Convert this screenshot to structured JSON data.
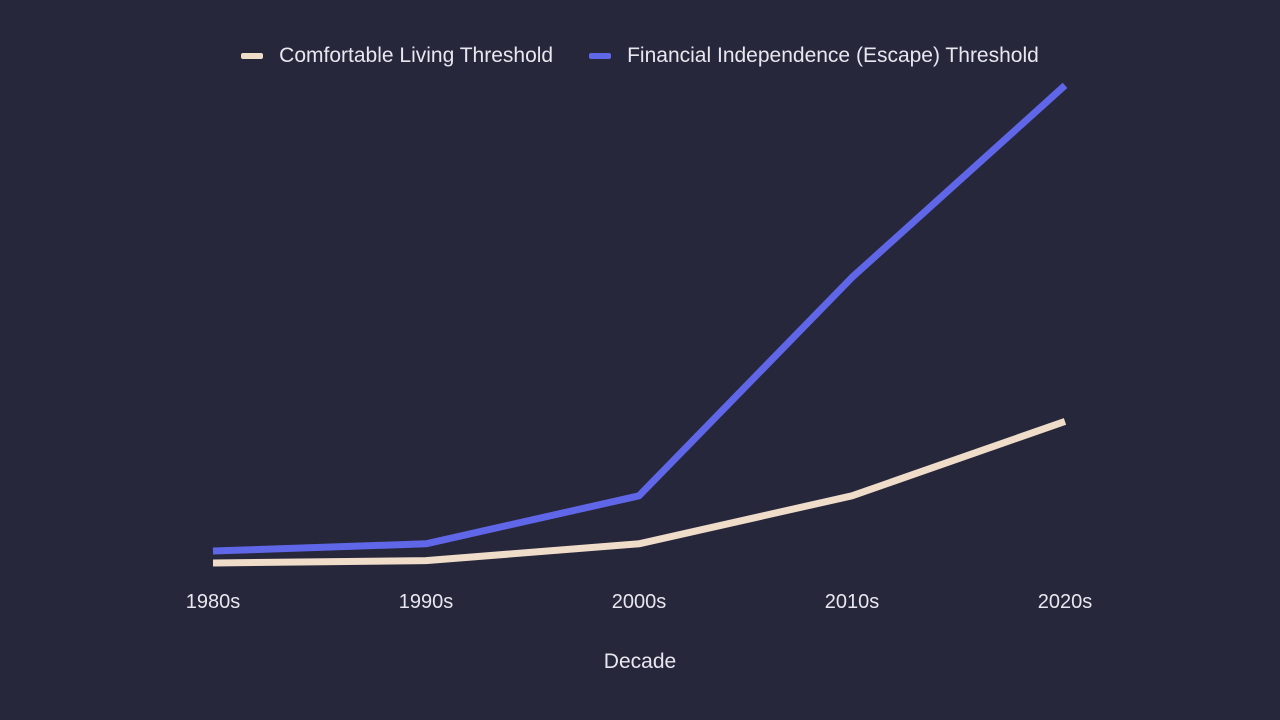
{
  "chart_data": {
    "type": "line",
    "title": "",
    "xlabel": "Decade",
    "ylabel": "",
    "categories": [
      "1980s",
      "1990s",
      "2000s",
      "2010s",
      "2020s"
    ],
    "ylim": [
      0,
      100
    ],
    "grid": false,
    "legend_position": "top-center",
    "series": [
      {
        "name": "Comfortable Living Threshold",
        "color": "#efdcc9",
        "values": [
          2.5,
          3,
          6.5,
          16.5,
          32
        ]
      },
      {
        "name": "Financial Independence (Escape) Threshold",
        "color": "#5f67e8",
        "values": [
          5,
          6.5,
          16.5,
          62,
          102
        ]
      }
    ]
  }
}
